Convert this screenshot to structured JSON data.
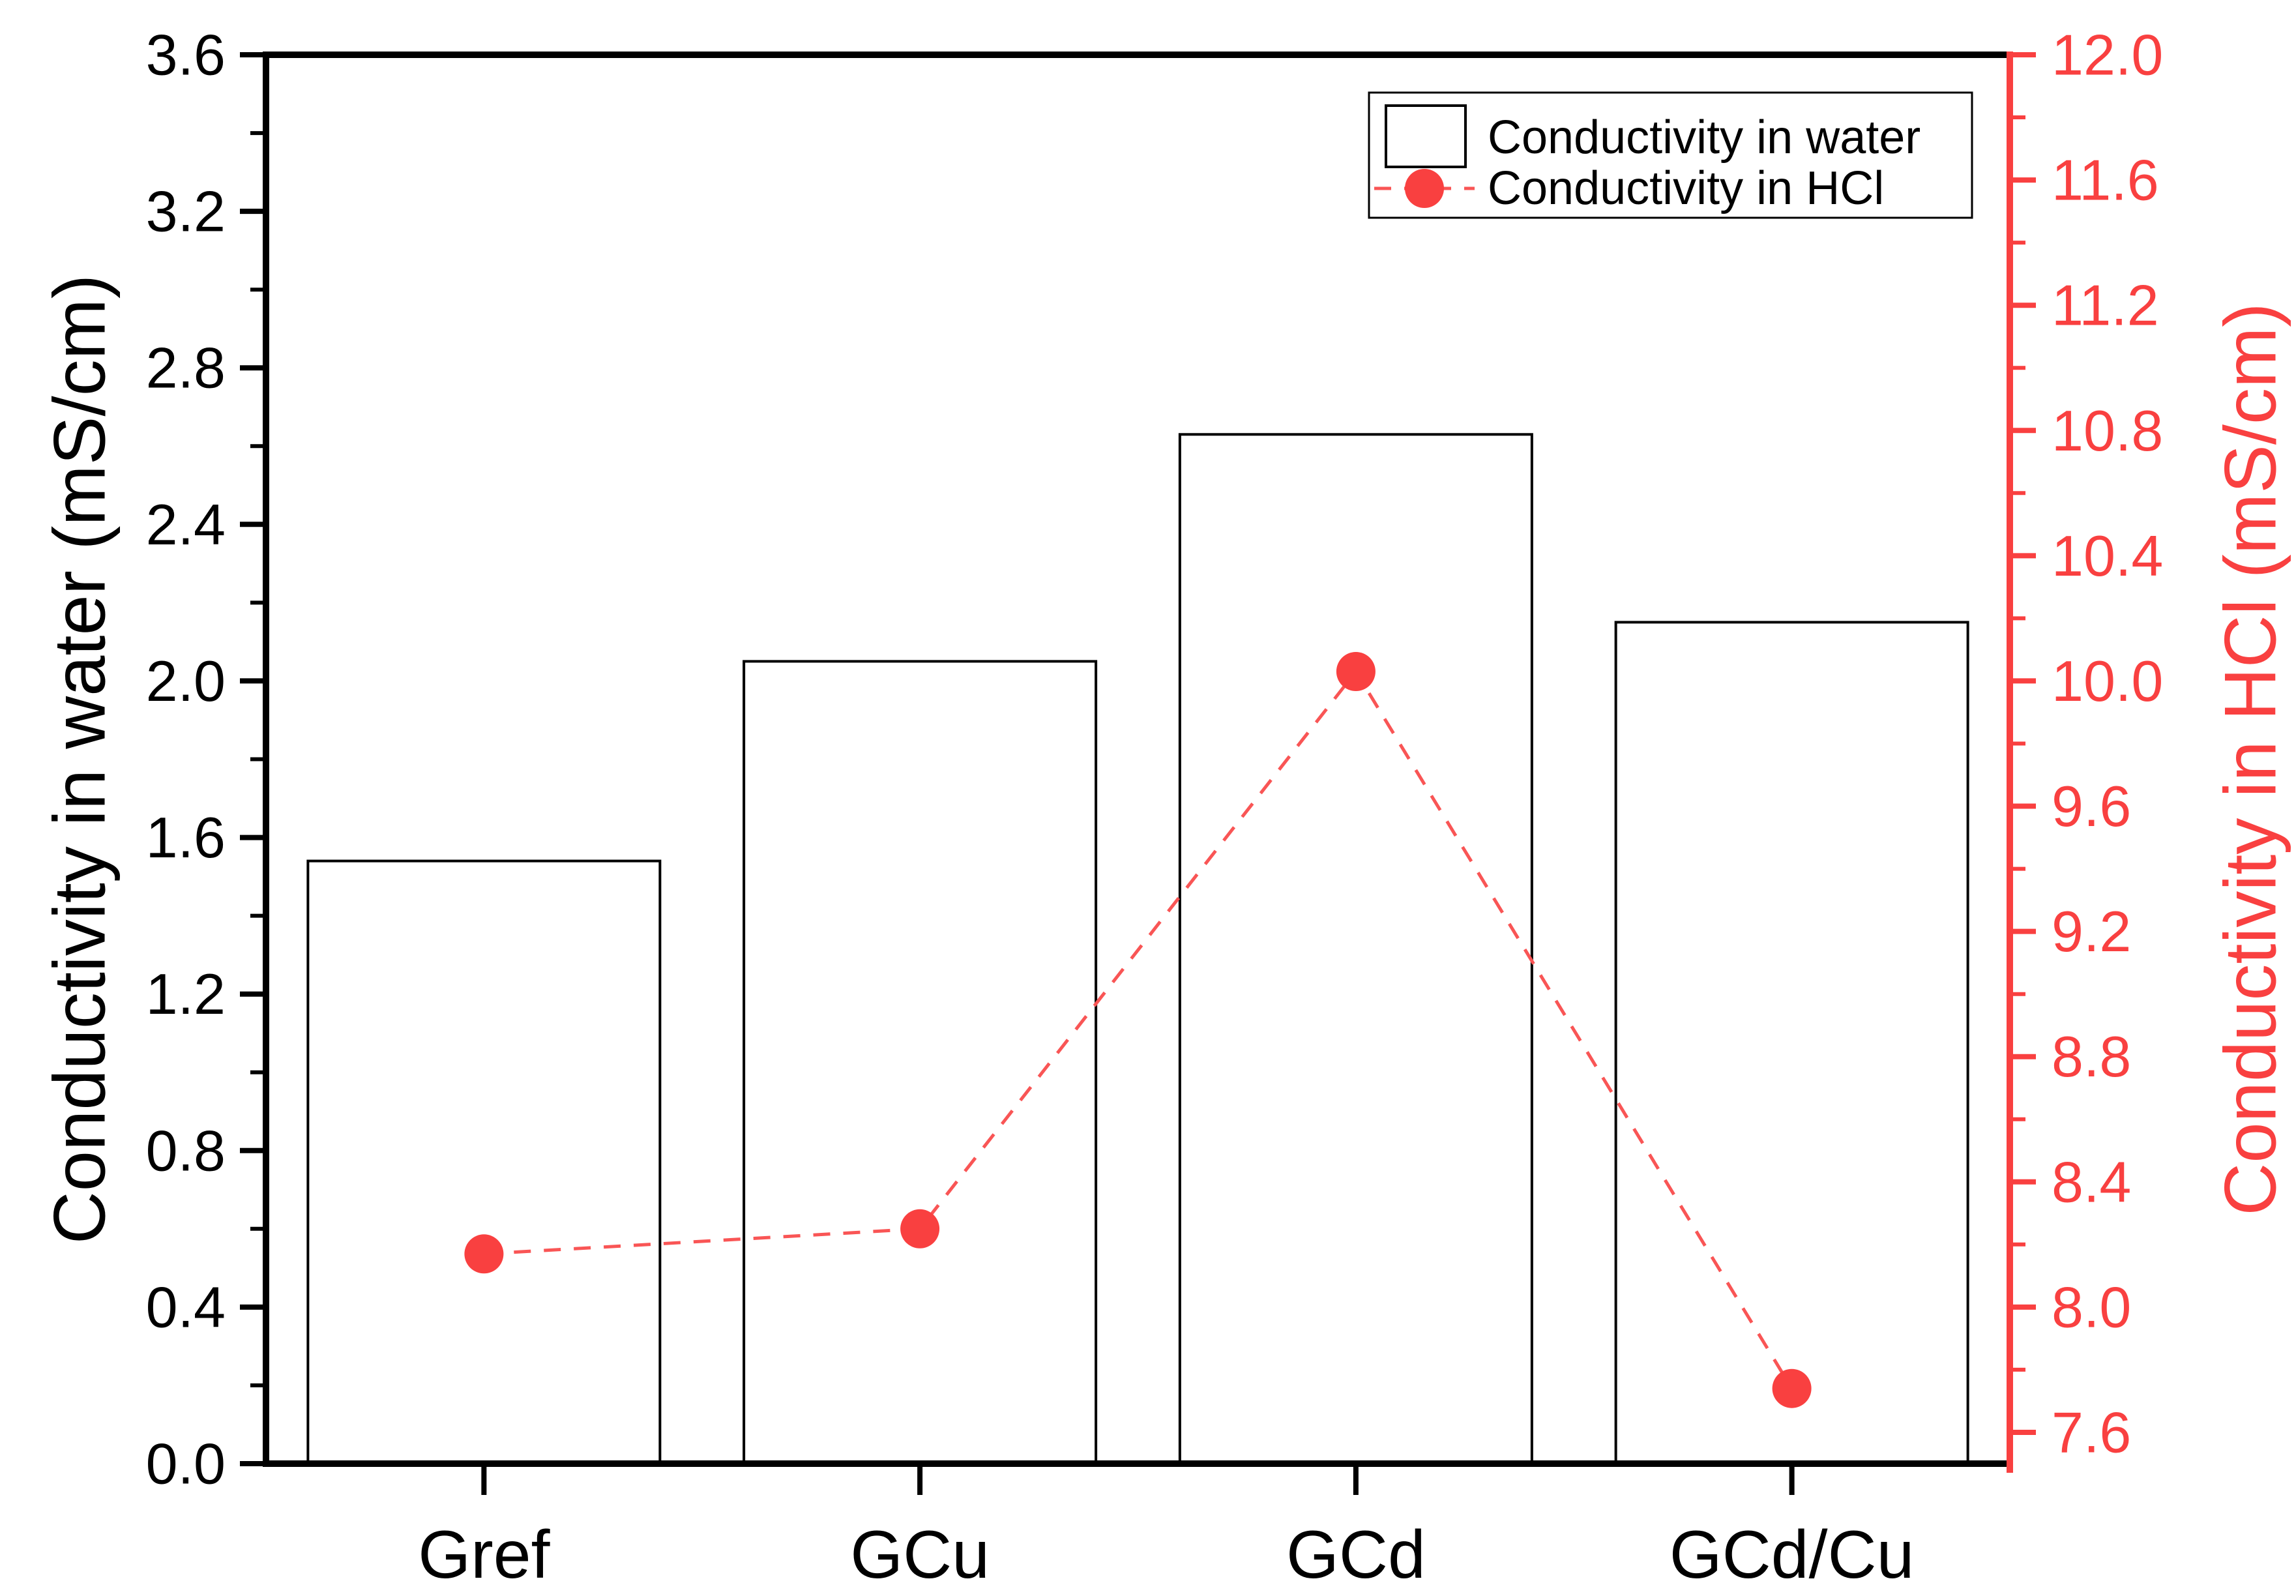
{
  "chart_data": {
    "type": "bar+line",
    "title": "",
    "categories": [
      "Gref",
      "GCu",
      "GCd",
      "GCd/Cu"
    ],
    "series": [
      {
        "name": "Conductivity in water",
        "type": "bar",
        "axis": "left",
        "values": [
          1.54,
          2.05,
          2.63,
          2.15
        ],
        "fill": "#ffffff",
        "stroke": "#000000"
      },
      {
        "name": "Conductivity in HCl",
        "type": "line",
        "axis": "right",
        "values": [
          8.17,
          8.25,
          10.03,
          7.74
        ],
        "color": "#f94040",
        "line_color": "#f95555",
        "line_style": "dashed",
        "marker": "circle"
      }
    ],
    "left_axis": {
      "label": "Conductivity in water (mS/cm)",
      "min": 0.0,
      "max": 3.6,
      "major_step": 0.4,
      "minor_step": 0.2,
      "tick_labels": [
        "0.0",
        "0.4",
        "0.8",
        "1.2",
        "1.6",
        "2.0",
        "2.4",
        "2.8",
        "3.2",
        "3.6"
      ],
      "color": "#000000"
    },
    "right_axis": {
      "label": "Conductivity in HCl (mS/cm)",
      "min": 7.5,
      "max": 12.0,
      "first_major": 7.6,
      "major_step": 0.4,
      "minor_step": 0.2,
      "tick_labels": [
        "7.6",
        "8.0",
        "8.4",
        "8.8",
        "9.2",
        "9.6",
        "10.0",
        "10.4",
        "10.8",
        "11.2",
        "11.6",
        "12.0"
      ],
      "color": "#f94040"
    },
    "legend": {
      "position": "top-right",
      "items": [
        {
          "label": "Conductivity in water",
          "swatch": "white-bar-outline"
        },
        {
          "label": "Conductivity in HCl",
          "swatch": "red-dashed-line-circle"
        }
      ]
    },
    "grid": false,
    "background": "#ffffff"
  }
}
